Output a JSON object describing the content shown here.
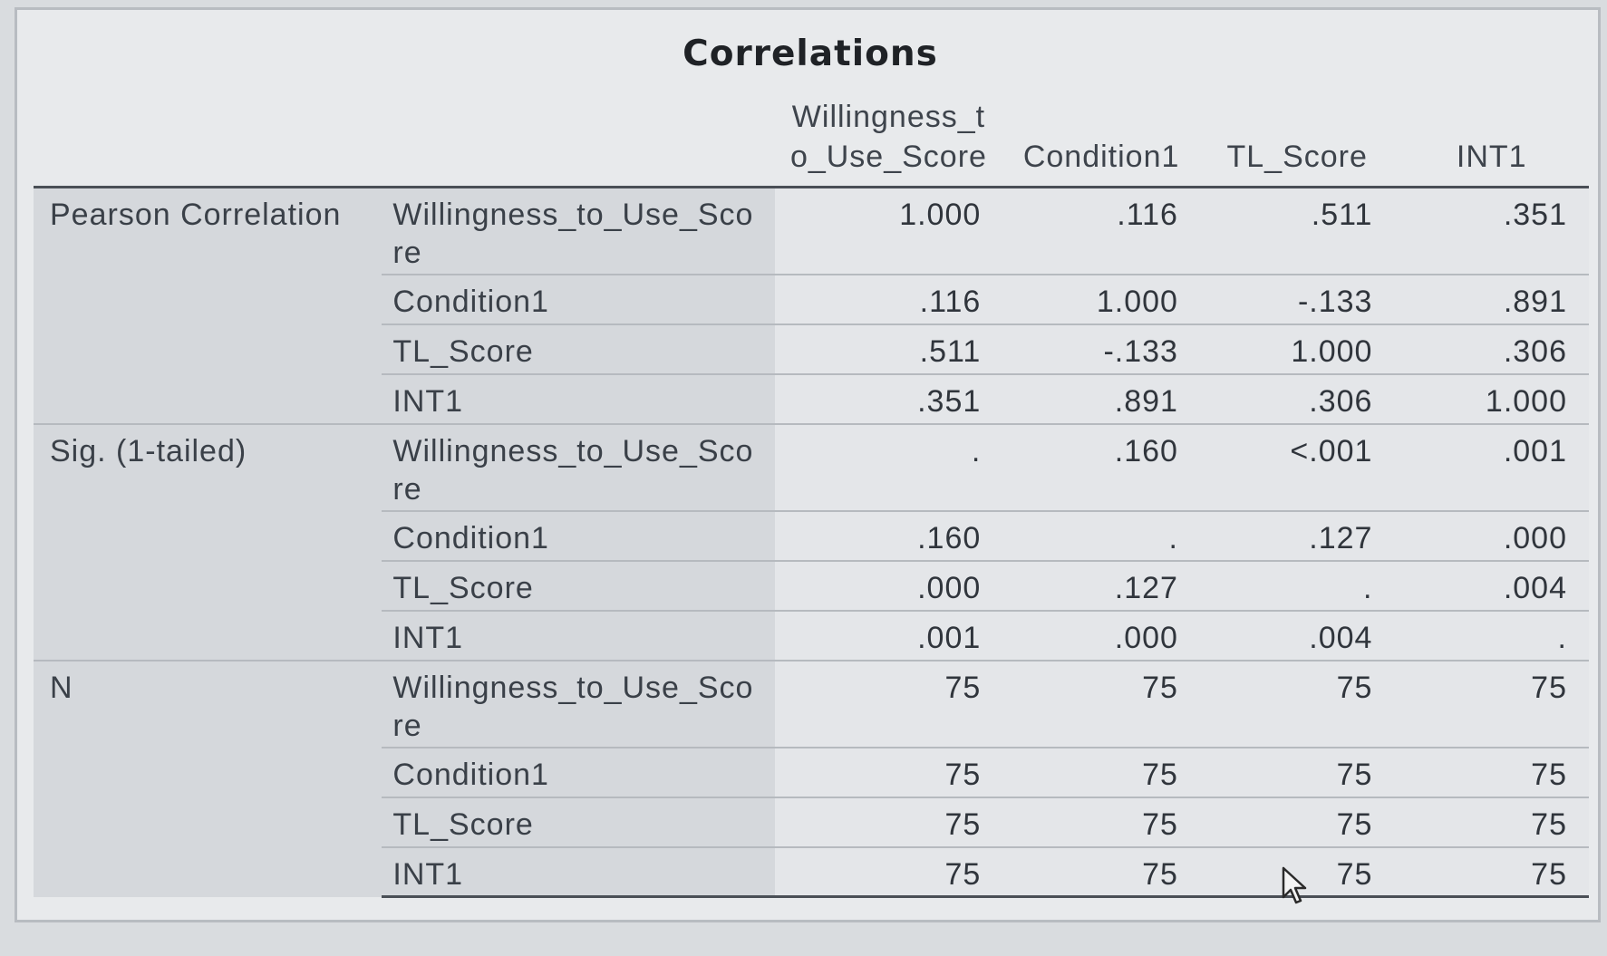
{
  "window": {
    "title": "Correlations"
  },
  "table": {
    "column_headers": [
      "Willingness_to_Use_Score",
      "Condition1",
      "TL_Score",
      "INT1"
    ],
    "groups": [
      {
        "label": "Pearson Correlation",
        "rows": [
          {
            "label": "Willingness_to_Use_Score",
            "values": [
              "1.000",
              ".116",
              ".511",
              ".351"
            ]
          },
          {
            "label": "Condition1",
            "values": [
              ".116",
              "1.000",
              "-.133",
              ".891"
            ]
          },
          {
            "label": "TL_Score",
            "values": [
              ".511",
              "-.133",
              "1.000",
              ".306"
            ]
          },
          {
            "label": "INT1",
            "values": [
              ".351",
              ".891",
              ".306",
              "1.000"
            ]
          }
        ]
      },
      {
        "label": "Sig. (1-tailed)",
        "rows": [
          {
            "label": "Willingness_to_Use_Score",
            "values": [
              ".",
              ".160",
              "<.001",
              ".001"
            ]
          },
          {
            "label": "Condition1",
            "values": [
              ".160",
              ".",
              ".127",
              ".000"
            ]
          },
          {
            "label": "TL_Score",
            "values": [
              ".000",
              ".127",
              ".",
              ".004"
            ]
          },
          {
            "label": "INT1",
            "values": [
              ".001",
              ".000",
              ".004",
              "."
            ]
          }
        ]
      },
      {
        "label": "N",
        "rows": [
          {
            "label": "Willingness_to_Use_Score",
            "values": [
              "75",
              "75",
              "75",
              "75"
            ]
          },
          {
            "label": "Condition1",
            "values": [
              "75",
              "75",
              "75",
              "75"
            ]
          },
          {
            "label": "TL_Score",
            "values": [
              "75",
              "75",
              "75",
              "75"
            ]
          },
          {
            "label": "INT1",
            "values": [
              "75",
              "75",
              "75",
              "75"
            ]
          }
        ]
      }
    ]
  },
  "icons": {
    "cursor": "mouse-pointer-icon"
  }
}
